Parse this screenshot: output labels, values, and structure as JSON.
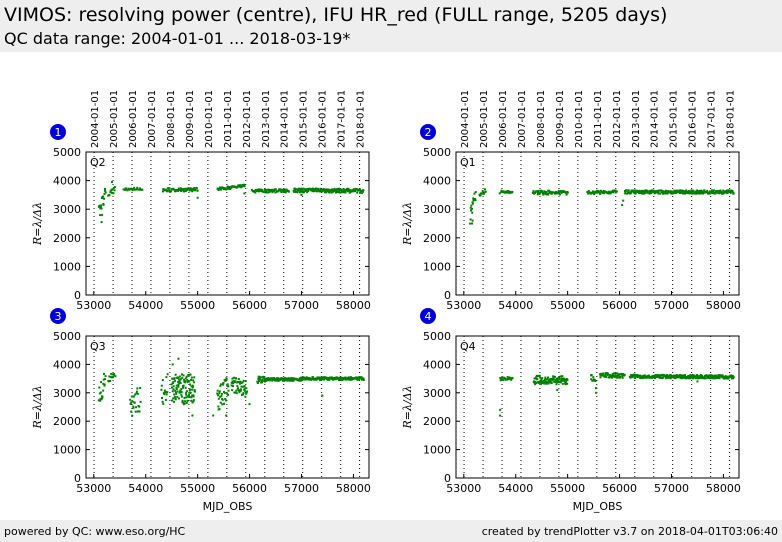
{
  "header": {
    "title": "VIMOS: resolving power (centre), IFU HR_red (FULL range, 5205 days)",
    "subtitle": "QC data range: 2004-01-01 ... 2018-03-19*"
  },
  "footer": {
    "left": "powered by QC: www.eso.org/HC",
    "right": "created by trendPlotter v3.7 on 2018-04-01T03:06:40"
  },
  "colors": {
    "points": "#008000",
    "badge": "#0000dd",
    "header_bg": "#eeeeee"
  },
  "chart_data": [
    {
      "type": "scatter",
      "panel": "1",
      "label": "Q2",
      "xlabel": "",
      "ylabel": "R=λ/Δλ",
      "xlim": [
        52850,
        58300
      ],
      "ylim": [
        0,
        5000
      ],
      "x_ticks": [
        53000,
        54000,
        55000,
        56000,
        57000,
        58000
      ],
      "y_ticks": [
        0,
        1000,
        2000,
        3000,
        4000,
        5000
      ],
      "top_axis_dates": [
        "2004-01-01",
        "2005-01-01",
        "2006-01-01",
        "2007-01-01",
        "2008-01-01",
        "2009-01-01",
        "2010-01-01",
        "2011-01-01",
        "2012-01-01",
        "2013-01-01",
        "2014-01-01",
        "2015-01-01",
        "2016-01-01",
        "2017-01-01",
        "2018-01-01"
      ],
      "segments": [
        {
          "x": [
            53100,
            53230
          ],
          "y": [
            2900,
            3600
          ],
          "step": 7,
          "spread": 250
        },
        {
          "x": [
            53280,
            53420
          ],
          "y": [
            3500,
            3750
          ],
          "step": 12,
          "spread": 120
        },
        {
          "x": [
            53580,
            53950
          ],
          "y": [
            3700,
            3700
          ],
          "step": 18,
          "spread": 50
        },
        {
          "x": [
            54330,
            55000
          ],
          "y": [
            3680,
            3680
          ],
          "step": 10,
          "spread": 60
        },
        {
          "x": [
            55380,
            55900
          ],
          "y": [
            3700,
            3820
          ],
          "step": 10,
          "spread": 50
        },
        {
          "x": [
            56050,
            56760
          ],
          "y": [
            3640,
            3640
          ],
          "step": 10,
          "spread": 60
        },
        {
          "x": [
            56850,
            58200
          ],
          "y": [
            3660,
            3640
          ],
          "step": 8,
          "spread": 70
        }
      ],
      "extra_points": [
        [
          53150,
          2550
        ],
        [
          53160,
          2800
        ],
        [
          53350,
          3950
        ],
        [
          55000,
          3400
        ],
        [
          55900,
          3550
        ],
        [
          57000,
          3500
        ]
      ]
    },
    {
      "type": "scatter",
      "panel": "2",
      "label": "Q1",
      "xlabel": "",
      "ylabel": "R=λ/Δλ",
      "xlim": [
        52850,
        58300
      ],
      "ylim": [
        0,
        5000
      ],
      "x_ticks": [
        53000,
        54000,
        55000,
        56000,
        57000,
        58000
      ],
      "y_ticks": [
        0,
        1000,
        2000,
        3000,
        4000,
        5000
      ],
      "top_axis_dates": [
        "2004-01-01",
        "2005-01-01",
        "2006-01-01",
        "2007-01-01",
        "2008-01-01",
        "2009-01-01",
        "2010-01-01",
        "2011-01-01",
        "2012-01-01",
        "2013-01-01",
        "2014-01-01",
        "2015-01-01",
        "2016-01-01",
        "2017-01-01",
        "2018-01-01"
      ],
      "segments": [
        {
          "x": [
            53120,
            53230
          ],
          "y": [
            2700,
            3500
          ],
          "step": 7,
          "spread": 280
        },
        {
          "x": [
            53300,
            53420
          ],
          "y": [
            3500,
            3650
          ],
          "step": 12,
          "spread": 100
        },
        {
          "x": [
            53700,
            53950
          ],
          "y": [
            3600,
            3600
          ],
          "step": 15,
          "spread": 50
        },
        {
          "x": [
            54330,
            55000
          ],
          "y": [
            3580,
            3580
          ],
          "step": 10,
          "spread": 70
        },
        {
          "x": [
            55380,
            55950
          ],
          "y": [
            3580,
            3600
          ],
          "step": 10,
          "spread": 60
        },
        {
          "x": [
            56100,
            58200
          ],
          "y": [
            3600,
            3600
          ],
          "step": 8,
          "spread": 60
        }
      ],
      "extra_points": [
        [
          53160,
          2500
        ],
        [
          53170,
          2600
        ],
        [
          56050,
          3150
        ],
        [
          56070,
          3300
        ],
        [
          53230,
          3600
        ]
      ]
    },
    {
      "type": "scatter",
      "panel": "3",
      "label": "Q3",
      "xlabel": "MJD_OBS",
      "ylabel": "R=λ/Δλ",
      "xlim": [
        52850,
        58300
      ],
      "ylim": [
        0,
        5000
      ],
      "x_ticks": [
        53000,
        54000,
        55000,
        56000,
        57000,
        58000
      ],
      "y_ticks": [
        0,
        1000,
        2000,
        3000,
        4000,
        5000
      ],
      "top_axis_dates": [],
      "segments": [
        {
          "x": [
            53100,
            53230
          ],
          "y": [
            2800,
            3500
          ],
          "step": 7,
          "spread": 350
        },
        {
          "x": [
            53280,
            53420
          ],
          "y": [
            3450,
            3650
          ],
          "step": 12,
          "spread": 150
        },
        {
          "x": [
            53700,
            53900
          ],
          "y": [
            2600,
            2800
          ],
          "step": 8,
          "spread": 450
        },
        {
          "x": [
            54300,
            54420
          ],
          "y": [
            2800,
            3400
          ],
          "step": 8,
          "spread": 500
        },
        {
          "x": [
            54500,
            54950
          ],
          "y": [
            3100,
            3100
          ],
          "step": 4,
          "spread": 550
        },
        {
          "x": [
            55380,
            55600
          ],
          "y": [
            2700,
            3200
          ],
          "step": 6,
          "spread": 450
        },
        {
          "x": [
            55650,
            55950
          ],
          "y": [
            3300,
            3100
          ],
          "step": 6,
          "spread": 300
        },
        {
          "x": [
            56150,
            56300
          ],
          "y": [
            3450,
            3500
          ],
          "step": 6,
          "spread": 120
        },
        {
          "x": [
            56300,
            57000
          ],
          "y": [
            3470,
            3470
          ],
          "step": 8,
          "spread": 50
        },
        {
          "x": [
            57000,
            58200
          ],
          "y": [
            3500,
            3500
          ],
          "step": 7,
          "spread": 50
        }
      ],
      "extra_points": [
        [
          54630,
          4200
        ],
        [
          54520,
          4000
        ],
        [
          54900,
          2200
        ],
        [
          55550,
          2200
        ],
        [
          56000,
          2600
        ],
        [
          57400,
          2900
        ],
        [
          55300,
          2200
        ]
      ]
    },
    {
      "type": "scatter",
      "panel": "4",
      "label": "Q4",
      "xlabel": "MJD_OBS",
      "ylabel": "R=λ/Δλ",
      "xlim": [
        52850,
        58300
      ],
      "ylim": [
        0,
        5000
      ],
      "x_ticks": [
        53000,
        54000,
        55000,
        56000,
        57000,
        58000
      ],
      "y_ticks": [
        0,
        1000,
        2000,
        3000,
        4000,
        5000
      ],
      "top_axis_dates": [],
      "segments": [
        {
          "x": [
            53700,
            53950
          ],
          "y": [
            3500,
            3500
          ],
          "step": 12,
          "spread": 60
        },
        {
          "x": [
            54350,
            55000
          ],
          "y": [
            3450,
            3450
          ],
          "step": 6,
          "spread": 150
        },
        {
          "x": [
            55450,
            55550
          ],
          "y": [
            3500,
            3300
          ],
          "step": 8,
          "spread": 200
        },
        {
          "x": [
            55620,
            56100
          ],
          "y": [
            3620,
            3600
          ],
          "step": 8,
          "spread": 80
        },
        {
          "x": [
            56200,
            58200
          ],
          "y": [
            3580,
            3560
          ],
          "step": 7,
          "spread": 60
        }
      ],
      "extra_points": [
        [
          53700,
          2200
        ],
        [
          53700,
          2400
        ],
        [
          54800,
          3100
        ],
        [
          55550,
          3000
        ],
        [
          57500,
          3400
        ]
      ]
    }
  ]
}
